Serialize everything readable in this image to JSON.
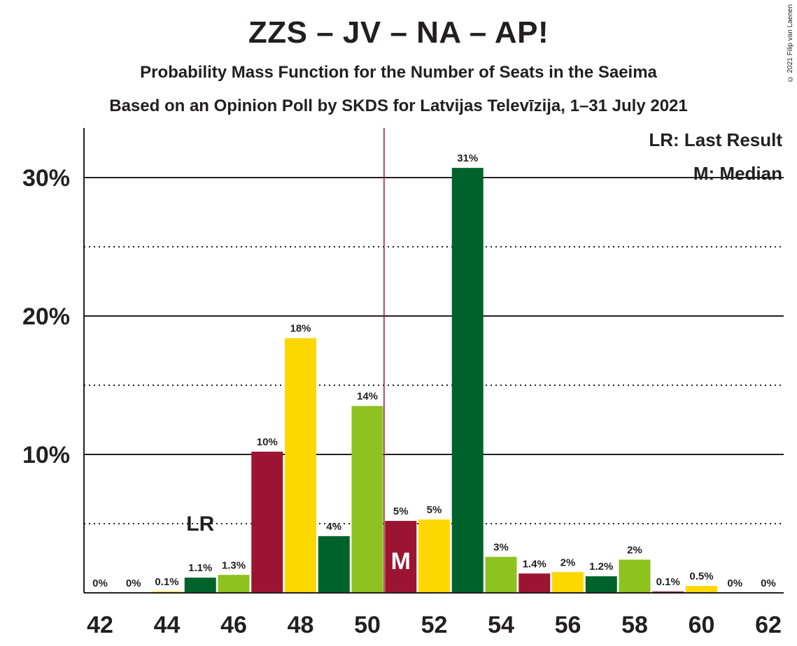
{
  "header": {
    "title": "ZZS – JV – NA – AP!",
    "subtitle": "Probability Mass Function for the Number of Seats in the Saeima",
    "source": "Based on an Opinion Poll by SKDS for Latvijas Televīzija, 1–31 July 2021",
    "copyright": "© 2021 Filip van Laenen"
  },
  "chart_data": {
    "type": "bar",
    "title": "ZZS – JV – NA – AP!",
    "xlabel": "",
    "ylabel": "",
    "categories": [
      42,
      43,
      44,
      45,
      46,
      47,
      48,
      49,
      50,
      51,
      52,
      53,
      54,
      55,
      56,
      57,
      58,
      59,
      60,
      61,
      62
    ],
    "values": [
      0,
      0,
      0.1,
      1.1,
      1.3,
      10.2,
      18.4,
      4.1,
      13.5,
      5.2,
      5.3,
      30.7,
      2.6,
      1.4,
      1.5,
      1.2,
      2.4,
      0.1,
      0.5,
      0,
      0
    ],
    "data_labels": [
      "0%",
      "0%",
      "0.1%",
      "1.1%",
      "1.3%",
      "10%",
      "18%",
      "4%",
      "14%",
      "5%",
      "5%",
      "31%",
      "3%",
      "1.4%",
      "2%",
      "1.2%",
      "2%",
      "0.1%",
      "0.5%",
      "0%",
      "0%"
    ],
    "bar_colors": [
      "#8dc21f",
      "#9b1532",
      "#fdd700",
      "#00622b",
      "#8dc21f",
      "#9b1532",
      "#fdd700",
      "#00622b",
      "#8dc21f",
      "#9b1532",
      "#fdd700",
      "#00622b",
      "#8dc21f",
      "#9b1532",
      "#fdd700",
      "#00622b",
      "#8dc21f",
      "#9b1532",
      "#fdd700",
      "#00622b",
      "#8dc21f"
    ],
    "x_tick_labels": [
      "42",
      "44",
      "46",
      "48",
      "50",
      "52",
      "54",
      "56",
      "58",
      "60",
      "62"
    ],
    "y_tick_labels": [
      "10%",
      "20%",
      "30%"
    ],
    "y_ticks": [
      10,
      20,
      30
    ],
    "y_minor_ticks": [
      5,
      15,
      25
    ],
    "ylim": [
      0,
      33.5
    ],
    "grid": true,
    "last_result": {
      "seats": 45,
      "label": "LR"
    },
    "median": {
      "seats": 51,
      "label": "M"
    },
    "majority_line_after": 50,
    "legend": {
      "position": "top-right",
      "items": [
        "LR: Last Result",
        "M: Median"
      ]
    }
  }
}
